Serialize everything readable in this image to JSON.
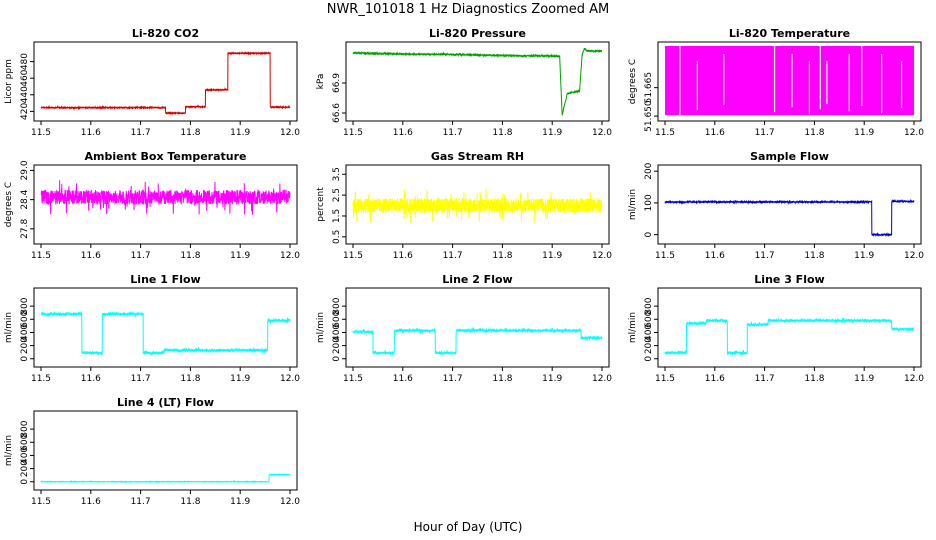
{
  "figure": {
    "title": "NWR_101018  1 Hz Diagnostics Zoomed AM",
    "xlabel": "Hour of Day (UTC)"
  },
  "chart_data": [
    {
      "type": "line",
      "title": "Li-820 CO2",
      "ylabel": "Licor ppm",
      "color": "#d00000",
      "xlim": [
        11.5,
        12.0
      ],
      "ylim": [
        412,
        500
      ],
      "xticks": [
        "11.5",
        "11.6",
        "11.7",
        "11.8",
        "11.9",
        "12.0"
      ],
      "yticks": [
        420,
        440,
        460,
        480
      ],
      "noise": 0.6,
      "series": [
        {
          "x": [
            11.5,
            11.75,
            11.75,
            11.79,
            11.79,
            11.83,
            11.83,
            11.875,
            11.875,
            11.96,
            11.96,
            12.0
          ],
          "y": [
            424.5,
            424.5,
            418,
            418,
            425.5,
            425.5,
            446,
            446,
            490,
            490,
            425,
            425
          ]
        }
      ]
    },
    {
      "type": "line",
      "title": "Li-820 Pressure",
      "ylabel": "kPa",
      "color": "#00a000",
      "xlim": [
        11.5,
        12.0
      ],
      "ylim": [
        66.55,
        67.28
      ],
      "xticks": [
        "11.5",
        "11.6",
        "11.7",
        "11.8",
        "11.9",
        "12.0"
      ],
      "yticks": [
        "66.6",
        "66.9"
      ],
      "noise": 0.006,
      "series": [
        {
          "x": [
            11.5,
            11.6,
            11.7,
            11.8,
            11.9,
            11.915,
            11.92,
            11.93,
            11.935,
            11.955,
            11.96,
            11.965,
            11.97,
            12.0
          ],
          "y": [
            67.2,
            67.19,
            67.185,
            67.175,
            67.17,
            67.165,
            66.58,
            66.79,
            66.8,
            66.82,
            67.18,
            67.25,
            67.22,
            67.22
          ]
        }
      ]
    },
    {
      "type": "area",
      "title": "Li-820 Temperature",
      "ylabel": "degrees C",
      "color": "#ff00ff",
      "xlim": [
        11.5,
        12.0
      ],
      "ylim": [
        51.649,
        51.6875
      ],
      "xticks": [
        "11.5",
        "11.6",
        "11.7",
        "11.8",
        "11.9",
        "12.0"
      ],
      "yticks": [
        "51.650",
        "51.665"
      ],
      "band": [
        51.6505,
        51.687
      ],
      "gaps": [
        11.53,
        11.565,
        11.618,
        11.72,
        11.755,
        11.79,
        11.812,
        11.825,
        11.87,
        11.895,
        11.935,
        11.975
      ]
    },
    {
      "type": "line",
      "title": "Ambient Box Temperature",
      "ylabel": "degrees C",
      "color": "#ff00ff",
      "xlim": [
        11.5,
        12.0
      ],
      "ylim": [
        27.55,
        29.05
      ],
      "xticks": [
        "11.5",
        "11.6",
        "11.7",
        "11.8",
        "11.9",
        "12.0"
      ],
      "yticks": [
        "27.8",
        "28.4",
        "29.0"
      ],
      "noise": 0.15,
      "series": [
        {
          "x": [
            11.5,
            12.0
          ],
          "y": [
            28.45,
            28.45
          ]
        }
      ]
    },
    {
      "type": "line",
      "title": "Gas Stream RH",
      "ylabel": "percent",
      "color": "#ffff00",
      "xlim": [
        11.5,
        12.0
      ],
      "ylim": [
        0.3,
        3.8
      ],
      "xticks": [
        "11.5",
        "11.6",
        "11.7",
        "11.8",
        "11.9",
        "12.0"
      ],
      "yticks": [
        "0.5",
        "1.5",
        "2.5",
        "3.5"
      ],
      "noise": 0.35,
      "series": [
        {
          "x": [
            11.5,
            12.0
          ],
          "y": [
            2.0,
            2.0
          ]
        }
      ]
    },
    {
      "type": "line",
      "title": "Sample Flow",
      "ylabel": "ml/min",
      "color": "#0000cc",
      "xlim": [
        11.5,
        12.0
      ],
      "ylim": [
        -20,
        210
      ],
      "xticks": [
        "11.5",
        "11.6",
        "11.7",
        "11.8",
        "11.9",
        "12.0"
      ],
      "yticks": [
        0,
        100,
        200
      ],
      "noise": 2,
      "series": [
        {
          "x": [
            11.5,
            11.915,
            11.915,
            11.955,
            11.955,
            12.0
          ],
          "y": [
            103,
            103,
            0,
            0,
            105,
            105
          ]
        }
      ]
    },
    {
      "type": "line",
      "title": "Line 1 Flow",
      "ylabel": "ml/min",
      "color": "#00ffff",
      "xlim": [
        11.5,
        12.0
      ],
      "ylim": [
        -80,
        1030
      ],
      "xticks": [
        "11.5",
        "11.6",
        "11.7",
        "11.8",
        "11.9",
        "12.0"
      ],
      "yticks": [
        0,
        200,
        400,
        600,
        800
      ],
      "noise": 18,
      "series": [
        {
          "x": [
            11.5,
            11.582,
            11.582,
            11.623,
            11.623,
            11.705,
            11.705,
            11.747,
            11.747,
            11.955,
            11.955,
            12.0
          ],
          "y": [
            680,
            680,
            90,
            90,
            680,
            680,
            90,
            90,
            130,
            130,
            580,
            580
          ]
        }
      ]
    },
    {
      "type": "line",
      "title": "Line 2 Flow",
      "ylabel": "ml/min",
      "color": "#00ffff",
      "xlim": [
        11.5,
        12.0
      ],
      "ylim": [
        -80,
        1030
      ],
      "xticks": [
        "11.5",
        "11.6",
        "11.7",
        "11.8",
        "11.9",
        "12.0"
      ],
      "yticks": [
        0,
        200,
        400,
        600,
        800
      ],
      "noise": 18,
      "series": [
        {
          "x": [
            11.5,
            11.54,
            11.54,
            11.583,
            11.583,
            11.665,
            11.665,
            11.707,
            11.707,
            11.958,
            11.958,
            12.0
          ],
          "y": [
            410,
            410,
            90,
            90,
            430,
            430,
            90,
            90,
            430,
            430,
            320,
            320
          ]
        }
      ]
    },
    {
      "type": "line",
      "title": "Line 3 Flow",
      "ylabel": "ml/min",
      "color": "#00ffff",
      "xlim": [
        11.5,
        12.0
      ],
      "ylim": [
        -80,
        1030
      ],
      "xticks": [
        "11.5",
        "11.6",
        "11.7",
        "11.8",
        "11.9",
        "12.0"
      ],
      "yticks": [
        0,
        200,
        400,
        600,
        800
      ],
      "noise": 18,
      "series": [
        {
          "x": [
            11.5,
            11.543,
            11.543,
            11.583,
            11.583,
            11.625,
            11.625,
            11.665,
            11.665,
            11.707,
            11.707,
            11.955,
            11.955,
            12.0
          ],
          "y": [
            90,
            90,
            540,
            540,
            580,
            580,
            90,
            90,
            520,
            520,
            580,
            580,
            450,
            450
          ]
        }
      ]
    },
    {
      "type": "line",
      "title": "Line 4 (LT) Flow",
      "ylabel": "ml/min",
      "color": "#00ffff",
      "xlim": [
        11.5,
        12.0
      ],
      "ylim": [
        -80,
        1030
      ],
      "xticks": [
        "11.5",
        "11.6",
        "11.7",
        "11.8",
        "11.9",
        "12.0"
      ],
      "yticks": [
        0,
        200,
        400,
        600,
        800
      ],
      "noise": 3,
      "series": [
        {
          "x": [
            11.5,
            11.958,
            11.958,
            12.0
          ],
          "y": [
            0,
            0,
            110,
            110
          ]
        }
      ]
    }
  ]
}
